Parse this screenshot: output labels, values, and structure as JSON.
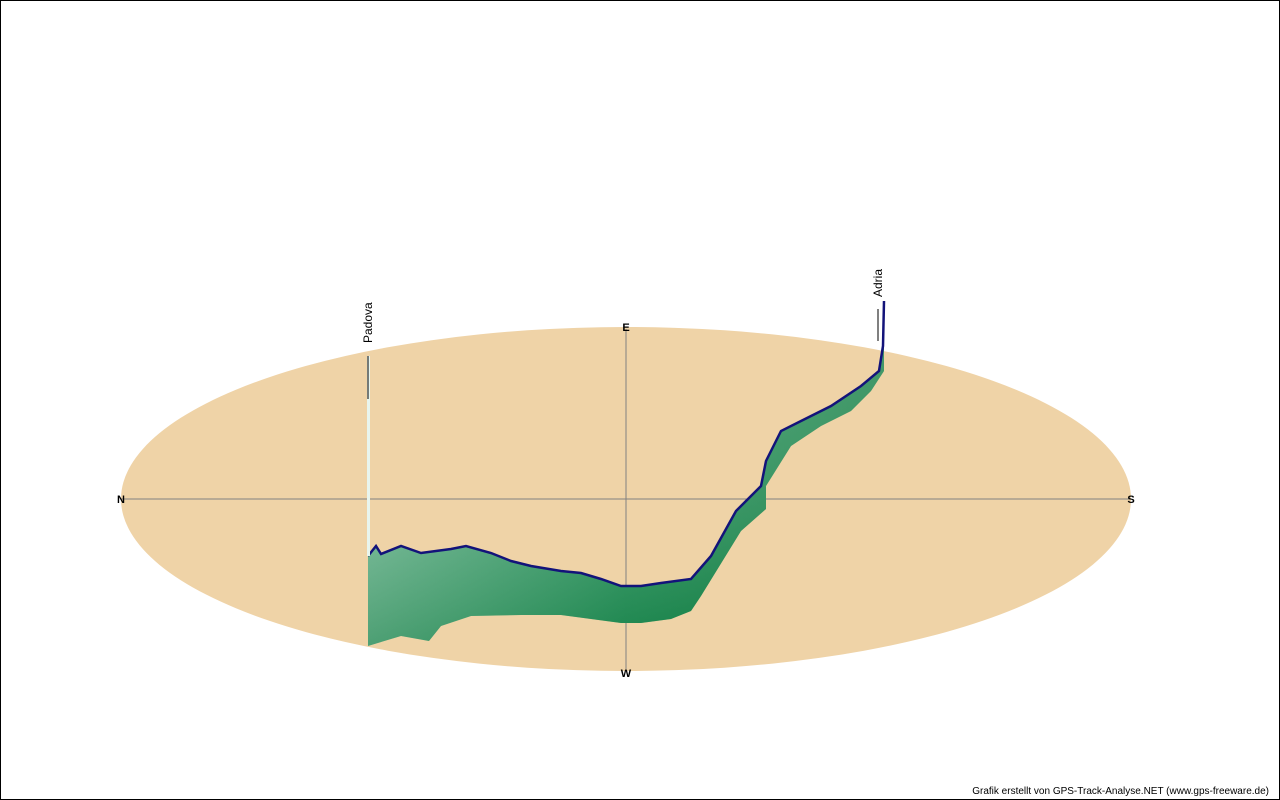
{
  "directions": {
    "north": "N",
    "east": "E",
    "south": "S",
    "west": "W"
  },
  "places": {
    "start": "Padova",
    "end": "Adria"
  },
  "credit": "Grafik erstellt von GPS-Track-Analyse.NET (www.gps-freeware.de)"
}
